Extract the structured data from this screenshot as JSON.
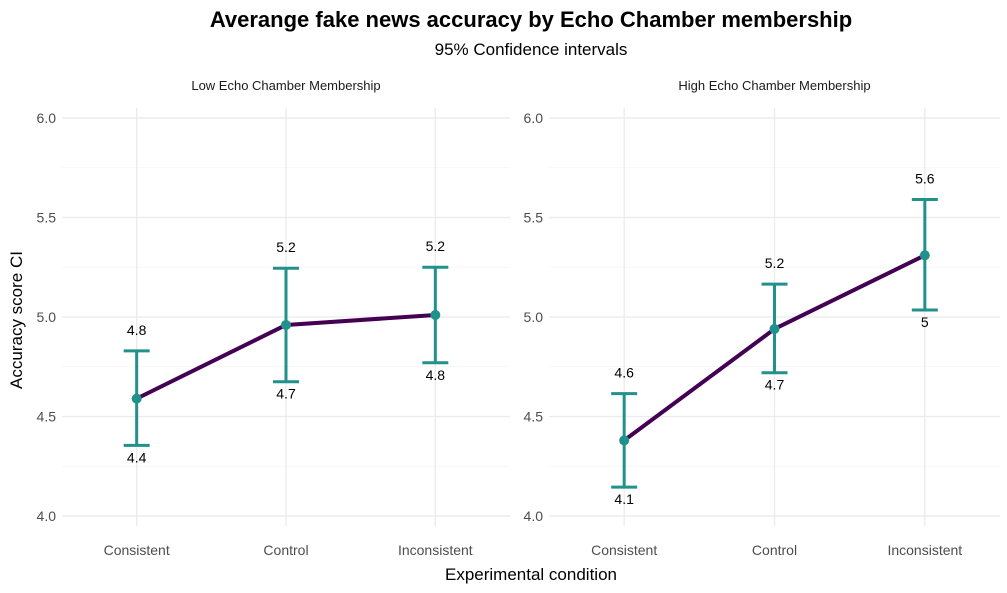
{
  "chart_data": {
    "type": "line",
    "title": "Averange fake news accuracy by Echo Chamber membership",
    "subtitle": "95% Confidence intervals",
    "xlabel": "Experimental condition",
    "ylabel": "Accuracy score CI",
    "categories": [
      "Consistent",
      "Control",
      "Inconsistent"
    ],
    "ylim": [
      3.95,
      6.05
    ],
    "yticks": [
      "4.0",
      "4.5",
      "5.0",
      "5.5",
      "6.0"
    ],
    "grid": true,
    "colors": {
      "line": "#440154",
      "errorbar": "#21918c",
      "point": "#21918c"
    },
    "panels": [
      {
        "label": "Low Echo Chamber Membership",
        "means": [
          4.59,
          4.96,
          5.01
        ],
        "lower": [
          4.355,
          4.675,
          4.77
        ],
        "upper": [
          4.83,
          5.245,
          5.25
        ],
        "lower_labels": [
          "4.4",
          "4.7",
          "4.8"
        ],
        "upper_labels": [
          "4.8",
          "5.2",
          "5.2"
        ]
      },
      {
        "label": "High Echo Chamber Membership",
        "means": [
          4.38,
          4.94,
          5.31
        ],
        "lower": [
          4.145,
          4.72,
          5.035
        ],
        "upper": [
          4.615,
          5.165,
          5.59
        ],
        "lower_labels": [
          "4.1",
          "4.7",
          "5"
        ],
        "upper_labels": [
          "4.6",
          "5.2",
          "5.6"
        ]
      }
    ]
  }
}
